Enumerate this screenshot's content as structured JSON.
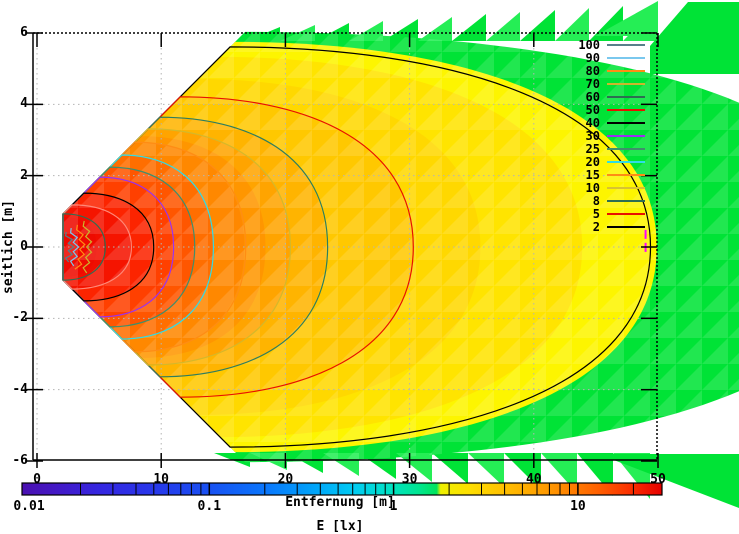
{
  "chart_data": {
    "type": "heatmap",
    "subtype": "filled-contour-isolux-diagram",
    "background": "#ffffff",
    "border_color": "#000000",
    "grid": {
      "color": "#b4b4b4"
    },
    "x": {
      "label": "Entfernung [m]",
      "range": [
        0,
        50
      ],
      "ticks": [
        "0",
        "10",
        "20",
        "30",
        "40",
        "50"
      ],
      "tick_values": [
        0,
        10,
        20,
        30,
        40,
        50
      ]
    },
    "y": {
      "label": "seitlich [m]",
      "range": [
        -6,
        6
      ],
      "ticks": [
        "6",
        "4",
        "2",
        "0",
        "-2",
        "-4",
        "-6"
      ],
      "tick_values": [
        6,
        4,
        2,
        0,
        -2,
        -4,
        -6
      ]
    },
    "colorbar": {
      "label": "E [lx]",
      "scale": "log",
      "range": [
        0.01,
        28
      ],
      "tick_labels": [
        "0.01",
        "0.1",
        "1",
        "10"
      ],
      "tick_values": [
        0.01,
        0.1,
        1,
        10
      ],
      "gradient": [
        [
          0,
          "#4a10b0"
        ],
        [
          0.05,
          "#4418c4"
        ],
        [
          0.12,
          "#3526e0"
        ],
        [
          0.2,
          "#2936ea"
        ],
        [
          0.29,
          "#1950f2"
        ],
        [
          0.38,
          "#0a76fc"
        ],
        [
          0.46,
          "#00a6fa"
        ],
        [
          0.52,
          "#00ccf2"
        ],
        [
          0.575,
          "#00e2c4"
        ],
        [
          0.62,
          "#00e590"
        ],
        [
          0.648,
          "#00e45c"
        ],
        [
          0.654,
          "#eef000"
        ],
        [
          0.7,
          "#fede00"
        ],
        [
          0.76,
          "#ffbc00"
        ],
        [
          0.83,
          "#ff9400"
        ],
        [
          0.9,
          "#ff6000"
        ],
        [
          0.95,
          "#fb3000"
        ],
        [
          1,
          "#e60000"
        ]
      ]
    },
    "source": {
      "tip_x_m": 2.1,
      "tip_half_m": 0.93
    },
    "contour_levels_lx": [
      2,
      5,
      8,
      10,
      15,
      20,
      25,
      30,
      40,
      50,
      60,
      70,
      80,
      90,
      100
    ],
    "contours": [
      {
        "level": 2,
        "color": "#000000",
        "max_x_m": 49.4,
        "half_m": 5.61
      },
      {
        "level": 5,
        "color": "#e81000",
        "max_x_m": 30.3,
        "half_m": 4.21
      },
      {
        "level": 8,
        "color": "#2e7d5e",
        "max_x_m": 23.4,
        "half_m": 3.64
      },
      {
        "level": 10,
        "color": "#d4b82a",
        "max_x_m": 20.4,
        "half_m": 3.31
      },
      {
        "level": 15,
        "color": "#ff8c14",
        "max_x_m": 16.8,
        "half_m": 2.94
      },
      {
        "level": 20,
        "color": "#30dce8",
        "max_x_m": 14.2,
        "half_m": 2.58
      },
      {
        "level": 25,
        "color": "#3f8f6b",
        "max_x_m": 12.7,
        "half_m": 2.24
      },
      {
        "level": 30,
        "color": "#9a30f0",
        "max_x_m": 11.0,
        "half_m": 1.96
      },
      {
        "level": 40,
        "color": "#000000",
        "max_x_m": 9.4,
        "half_m": 1.51
      },
      {
        "level": 50,
        "color": "#e81000",
        "draw_color": "#ff8878",
        "max_x_m": 7.6,
        "half_m": 1.18
      },
      {
        "level": 60,
        "color": "#2e6e52",
        "max_x_m": 5.5,
        "half_m": 0.93
      },
      {
        "level": 70,
        "color": "#cdb62c",
        "squiggle": true,
        "x_m": 3.8,
        "half_m": 0.73
      },
      {
        "level": 80,
        "color": "#ff8c14",
        "squiggle": true,
        "x_m": 3.25,
        "half_m": 0.62
      },
      {
        "level": 90,
        "color": "#7ac8ee",
        "squiggle": true,
        "x_m": 2.75,
        "half_m": 0.53
      },
      {
        "level": 100,
        "color": "#58808a",
        "squiggle": true,
        "x_m": 2.35,
        "half_m": 0.42
      }
    ],
    "fill_bands": [
      {
        "min_level_lx": 0,
        "color": "#00e336",
        "max_x_m": 67.0,
        "half_m": 6.03
      },
      {
        "min_level_lx": 2,
        "color": "#fdf500",
        "max_x_m": 49.9,
        "half_m": 5.75
      },
      {
        "min_level_lx": 3,
        "color": "#ffe400",
        "max_x_m": 43.9,
        "half_m": 5.33
      },
      {
        "min_level_lx": 4,
        "color": "#ffd800",
        "max_x_m": 35.7,
        "half_m": 4.71
      },
      {
        "min_level_lx": 5,
        "color": "#ffc800",
        "max_x_m": 30.3,
        "half_m": 4.21
      },
      {
        "min_level_lx": 8,
        "color": "#ffb400",
        "max_x_m": 23.3,
        "half_m": 3.64
      },
      {
        "min_level_lx": 10,
        "color": "#ffa400",
        "max_x_m": 20.4,
        "half_m": 3.31
      },
      {
        "min_level_lx": 12,
        "color": "#ff9600",
        "max_x_m": 18.4,
        "half_m": 3.11
      },
      {
        "min_level_lx": 15,
        "color": "#ff8800",
        "max_x_m": 16.7,
        "half_m": 2.94
      },
      {
        "min_level_lx": 20,
        "color": "#ff6e00",
        "max_x_m": 14.2,
        "half_m": 2.58
      },
      {
        "min_level_lx": 25,
        "color": "#ff5600",
        "max_x_m": 12.7,
        "half_m": 2.24
      },
      {
        "min_level_lx": 30,
        "color": "#ff4000",
        "max_x_m": 10.9,
        "half_m": 1.96
      },
      {
        "min_level_lx": 40,
        "color": "#fc2400",
        "max_x_m": 9.3,
        "half_m": 1.51
      },
      {
        "min_level_lx": 50,
        "color": "#f51400",
        "max_x_m": 7.6,
        "half_m": 1.18
      },
      {
        "min_level_lx": 60,
        "color": "#f00e00",
        "max_x_m": 5.5,
        "half_m": 0.93
      },
      {
        "min_level_lx": 70,
        "color": "#ee0a00",
        "max_x_m": 4.8,
        "half_m": 0.84
      }
    ],
    "fence": {
      "colors": [
        "#00e336",
        "#25ee55"
      ]
    },
    "stray_contour_fragment": {
      "color": "#ff00ff",
      "x_m": 49.0,
      "y_range_m": [
        -0.15,
        0.48
      ]
    }
  },
  "legend": {
    "entries": [
      {
        "label": "100",
        "color": "#58808a"
      },
      {
        "label": "90",
        "color": "#7ac8ee"
      },
      {
        "label": "80",
        "color": "#ff8c14"
      },
      {
        "label": "70",
        "color": "#cdb62c"
      },
      {
        "label": "60",
        "color": "#2e6e52"
      },
      {
        "label": "50",
        "color": "#e81000"
      },
      {
        "label": "40",
        "color": "#000000"
      },
      {
        "label": "30",
        "color": "#9a30f0"
      },
      {
        "label": "25",
        "color": "#3f8f6b"
      },
      {
        "label": "20",
        "color": "#30dce8"
      },
      {
        "label": "15",
        "color": "#ff8c14"
      },
      {
        "label": "10",
        "color": "#d8c232"
      },
      {
        "label": "8",
        "color": "#2e6e52"
      },
      {
        "label": "5",
        "color": "#e81000"
      },
      {
        "label": "2",
        "color": "#000000"
      }
    ]
  }
}
